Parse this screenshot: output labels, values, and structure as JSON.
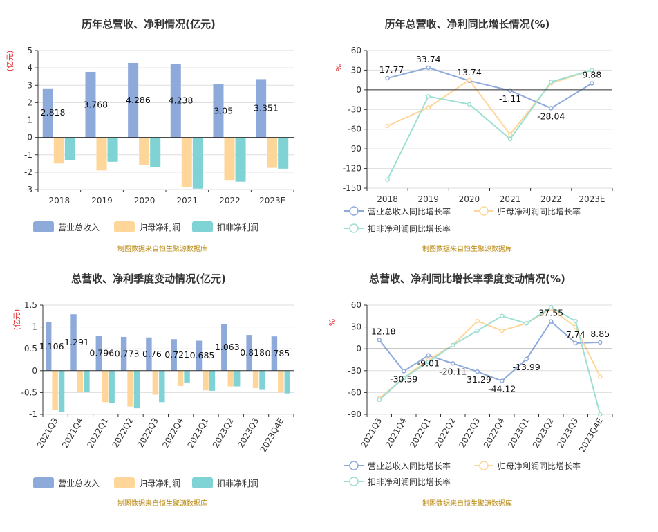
{
  "chart_data": [
    {
      "type": "bar",
      "title": "历年总营收、净利情况(亿元)",
      "unit": "(亿元)",
      "categories": [
        "2018",
        "2019",
        "2020",
        "2021",
        "2022",
        "2023E"
      ],
      "ylim": [
        -3,
        5
      ],
      "yticks": [
        5,
        4,
        3,
        2,
        1,
        0,
        -1,
        -2,
        -3
      ],
      "label_series": 0,
      "series": [
        {
          "name": "营业总收入",
          "color": "#8eaadb",
          "values": [
            2.818,
            3.768,
            4.286,
            4.238,
            3.05,
            3.351
          ],
          "labels": [
            "2.818",
            "3.768",
            "4.286",
            "4.238",
            "3.05",
            "3.351"
          ]
        },
        {
          "name": "归母净利润",
          "color": "#ffd699",
          "values": [
            -1.5,
            -1.9,
            -1.6,
            -2.85,
            -2.45,
            -1.75
          ]
        },
        {
          "name": "扣非净利润",
          "color": "#7fd3d5",
          "values": [
            -1.3,
            -1.4,
            -1.7,
            -2.95,
            -2.55,
            -1.8
          ]
        }
      ],
      "legend": "bottom",
      "source": "制图数据来自恒生聚源数据库"
    },
    {
      "type": "line",
      "title": "历年总营收、净利同比增长情况(%)",
      "unit": "%",
      "categories": [
        "2018",
        "2019",
        "2020",
        "2021",
        "2022",
        "2023E"
      ],
      "ylim": [
        -150,
        60
      ],
      "yticks": [
        60,
        30,
        0,
        -30,
        -60,
        -90,
        -120,
        -150
      ],
      "label_series": 0,
      "series": [
        {
          "name": "营业总收入同比增长率",
          "color": "#8eaadb",
          "values": [
            17.77,
            33.74,
            13.74,
            -1.11,
            -28.04,
            9.88
          ],
          "labels": [
            "17.77",
            "33.74",
            "13.74",
            "-1.11",
            "-28.04",
            "9.88"
          ]
        },
        {
          "name": "归母净利润同比增长率",
          "color": "#ffd699",
          "values": [
            -55,
            -27,
            15,
            -68,
            10,
            30
          ]
        },
        {
          "name": "扣非净利润同比增长率",
          "color": "#9ddfd3",
          "values": [
            -137,
            -10,
            -22,
            -75,
            12,
            30
          ]
        }
      ],
      "legend": "bottom",
      "source": "制图数据来自恒生聚源数据库"
    },
    {
      "type": "bar",
      "title": "总营收、净利季度变动情况(亿元)",
      "unit": "(亿元)",
      "categories": [
        "2021Q3",
        "2021Q4",
        "2022Q1",
        "2022Q2",
        "2022Q3",
        "2022Q4",
        "2023Q1",
        "2023Q2",
        "2023Q3",
        "2023Q4E"
      ],
      "ylim": [
        -1,
        1.5
      ],
      "yticks": [
        1.5,
        1,
        0.5,
        0,
        -0.5,
        -1
      ],
      "label_series": 0,
      "series": [
        {
          "name": "营业总收入",
          "color": "#8eaadb",
          "values": [
            1.106,
            1.291,
            0.796,
            0.773,
            0.76,
            0.721,
            0.685,
            1.063,
            0.818,
            0.785
          ],
          "labels": [
            "1.106",
            "1.291",
            "0.796",
            "0.773",
            "0.76",
            "0.721",
            "0.685",
            "1.063",
            "0.818",
            "0.785"
          ]
        },
        {
          "name": "归母净利润",
          "color": "#ffd699",
          "values": [
            -0.9,
            -0.48,
            -0.72,
            -0.82,
            -0.55,
            -0.35,
            -0.45,
            -0.36,
            -0.4,
            -0.5
          ]
        },
        {
          "name": "扣非净利润",
          "color": "#7fd3d5",
          "values": [
            -0.95,
            -0.48,
            -0.74,
            -0.86,
            -0.72,
            -0.27,
            -0.46,
            -0.36,
            -0.44,
            -0.52
          ]
        }
      ],
      "legend": "bottom",
      "source": "制图数据来自恒生聚源数据库"
    },
    {
      "type": "line",
      "title": "总营收、净利同比增长率季度变动情况(%)",
      "unit": "%",
      "categories": [
        "2021Q3",
        "2021Q4",
        "2022Q1",
        "2022Q2",
        "2022Q3",
        "2022Q4",
        "2023Q1",
        "2023Q2",
        "2023Q3",
        "2023Q4E"
      ],
      "ylim": [
        -90,
        60
      ],
      "yticks": [
        60,
        30,
        0,
        -30,
        -60,
        -90
      ],
      "label_series": 0,
      "series": [
        {
          "name": "营业总收入同比增长率",
          "color": "#8eaadb",
          "values": [
            12.18,
            -30.59,
            -9.01,
            -20.11,
            -31.29,
            -44.12,
            -13.99,
            37.55,
            7.74,
            8.85
          ],
          "labels": [
            "12.18",
            "-30.59",
            "-9.01",
            "-20.11",
            "-31.29",
            "-44.12",
            "-13.99",
            "37.55",
            "7.74",
            "8.85"
          ]
        },
        {
          "name": "归母净利润同比增长率",
          "color": "#ffd699",
          "values": [
            -68,
            -40,
            -15,
            5,
            38,
            25,
            35,
            55,
            30,
            -38
          ]
        },
        {
          "name": "扣非净利润同比增长率",
          "color": "#9ddfd3",
          "values": [
            -70,
            -40,
            -18,
            5,
            25,
            45,
            35,
            57,
            38,
            -90
          ]
        }
      ],
      "legend": "bottom",
      "source": "制图数据来自恒生聚源数据库"
    }
  ]
}
